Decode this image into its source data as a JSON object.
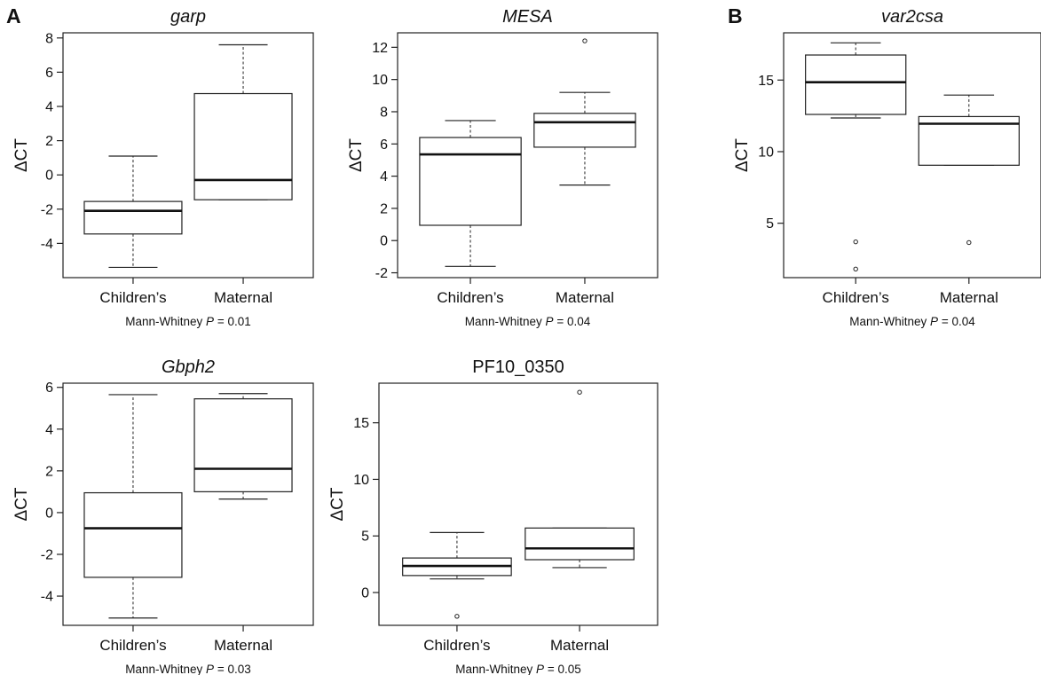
{
  "panel_letters": [
    "A",
    "B"
  ],
  "chart_data": [
    {
      "type": "box",
      "panel": "A",
      "title": "garp",
      "title_italic": true,
      "ylabel": "ΔCT",
      "categories": [
        "Children’s",
        "Maternal"
      ],
      "yticks": [
        -4,
        -2,
        0,
        2,
        4,
        6,
        8
      ],
      "ylim": [
        -6,
        8.3
      ],
      "boxes": [
        {
          "min": -5.4,
          "q1": -3.45,
          "median": -2.1,
          "q3": -1.55,
          "max": 1.1,
          "outliers": []
        },
        {
          "min": -1.45,
          "q1": -1.45,
          "median": -0.3,
          "q3": 4.75,
          "max": 7.6,
          "outliers": []
        }
      ],
      "stat": {
        "prefix": "Mann-Whitney ",
        "p": "P",
        "suffix": " = 0.01"
      }
    },
    {
      "type": "box",
      "panel": "A",
      "title": "MESA",
      "title_italic": true,
      "ylabel": "ΔCT",
      "categories": [
        "Children’s",
        "Maternal"
      ],
      "yticks": [
        -2,
        0,
        2,
        4,
        6,
        8,
        10,
        12
      ],
      "ylim": [
        -2.3,
        12.9
      ],
      "boxes": [
        {
          "min": -1.6,
          "q1": 0.95,
          "median": 5.35,
          "q3": 6.4,
          "max": 7.45,
          "outliers": []
        },
        {
          "min": 3.45,
          "q1": 5.8,
          "median": 7.35,
          "q3": 7.9,
          "max": 9.2,
          "outliers": [
            12.4
          ]
        }
      ],
      "stat": {
        "prefix": "Mann-Whitney ",
        "p": "P",
        "suffix": " = 0.04"
      }
    },
    {
      "type": "box",
      "panel": "B",
      "title": "var2csa",
      "title_italic": true,
      "ylabel": "ΔCT",
      "categories": [
        "Children’s",
        "Maternal"
      ],
      "yticks": [
        5,
        10,
        15
      ],
      "ylim": [
        1.2,
        18.3
      ],
      "boxes": [
        {
          "min": 12.35,
          "q1": 12.6,
          "median": 14.85,
          "q3": 16.75,
          "max": 17.6,
          "outliers": [
            3.7,
            1.8
          ]
        },
        {
          "min": 9.05,
          "q1": 9.05,
          "median": 11.95,
          "q3": 12.45,
          "max": 13.95,
          "outliers": [
            3.65
          ]
        }
      ],
      "stat": {
        "prefix": "Mann-Whitney ",
        "p": "P",
        "suffix": " = 0.04"
      }
    },
    {
      "type": "box",
      "panel": "A",
      "title": "Gbph2",
      "title_italic": true,
      "ylabel": "ΔCT",
      "categories": [
        "Children’s",
        "Maternal"
      ],
      "yticks": [
        -4,
        -2,
        0,
        2,
        4,
        6
      ],
      "ylim": [
        -5.4,
        6.2
      ],
      "boxes": [
        {
          "min": -5.05,
          "q1": -3.1,
          "median": -0.75,
          "q3": 0.95,
          "max": 5.65,
          "outliers": []
        },
        {
          "min": 0.65,
          "q1": 1.0,
          "median": 2.1,
          "q3": 5.45,
          "max": 5.7,
          "outliers": []
        }
      ],
      "stat": {
        "prefix": "Mann-Whitney ",
        "p": "P",
        "suffix": " = 0.03"
      }
    },
    {
      "type": "box",
      "panel": "A",
      "title": "PF10_0350",
      "title_italic": false,
      "ylabel": "ΔCT",
      "categories": [
        "Children’s",
        "Maternal"
      ],
      "yticks": [
        0,
        5,
        10,
        15
      ],
      "ylim": [
        -2.9,
        18.5
      ],
      "boxes": [
        {
          "min": 1.2,
          "q1": 1.5,
          "median": 2.35,
          "q3": 3.05,
          "max": 5.3,
          "outliers": [
            -2.1
          ]
        },
        {
          "min": 2.2,
          "q1": 2.9,
          "median": 3.9,
          "q3": 5.7,
          "max": 5.7,
          "outliers": [
            17.7
          ]
        }
      ],
      "stat": {
        "prefix": "Mann-Whitney ",
        "p": "P",
        "suffix": " = 0.05"
      }
    }
  ]
}
